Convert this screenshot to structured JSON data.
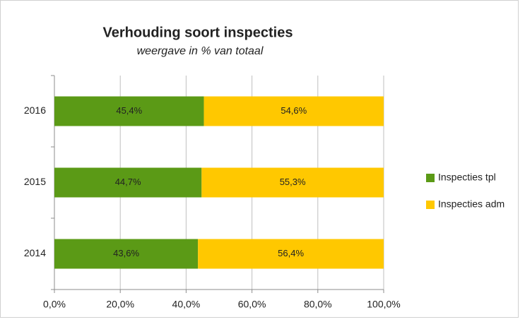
{
  "chart_data": {
    "type": "stacked-bar-horizontal",
    "title": "Verhouding soort inspecties",
    "subtitle": "weergave in % van totaal",
    "categories": [
      "2016",
      "2015",
      "2014"
    ],
    "series": [
      {
        "name": "Inspecties tpl",
        "color": "#5b9a16",
        "values": [
          45.4,
          44.7,
          43.6
        ],
        "value_labels": [
          "45,4%",
          "44,7%",
          "43,6%"
        ]
      },
      {
        "name": "Inspecties adm",
        "color": "#ffc800",
        "values": [
          54.6,
          55.3,
          56.4
        ],
        "value_labels": [
          "54,6%",
          "55,3%",
          "56,4%"
        ]
      }
    ],
    "xlim": [
      0,
      100
    ],
    "xticks": [
      {
        "value": 0,
        "label": "0,0%"
      },
      {
        "value": 20,
        "label": "20,0%"
      },
      {
        "value": 40,
        "label": "40,0%"
      },
      {
        "value": 60,
        "label": "60,0%"
      },
      {
        "value": 80,
        "label": "80,0%"
      },
      {
        "value": 100,
        "label": "100,0%"
      }
    ],
    "grid": true,
    "legend": "right"
  }
}
